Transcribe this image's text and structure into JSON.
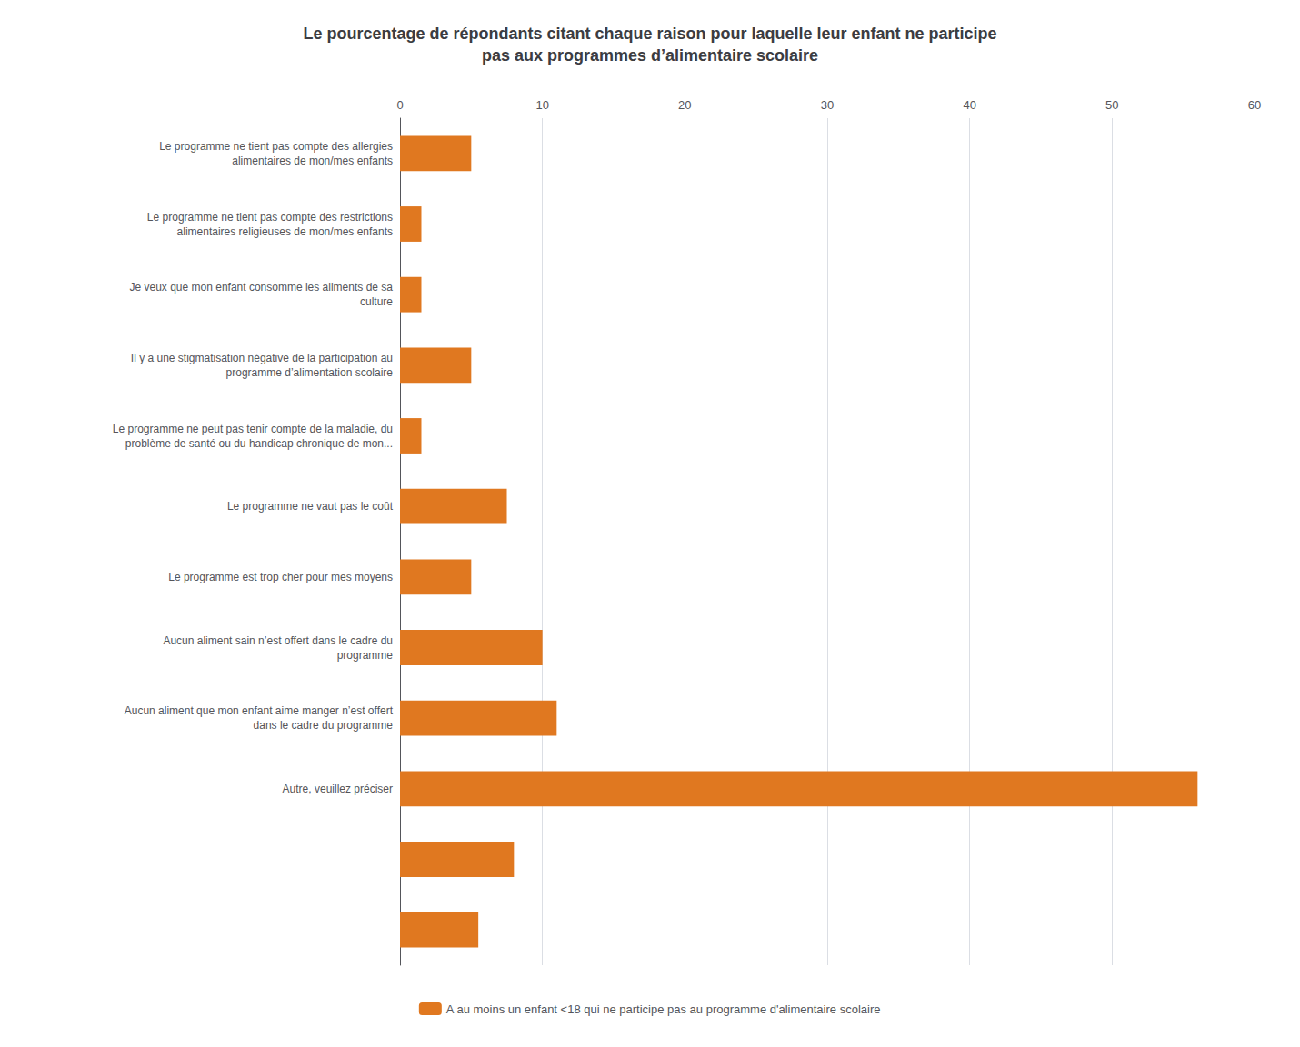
{
  "chart_data": {
    "type": "bar",
    "orientation": "horizontal",
    "title": "Le pourcentage de répondants citant chaque raison pour laquelle leur enfant ne participe\npas aux programmes d’alimentaire scolaire",
    "categories": [
      "Le programme ne tient pas compte des allergies\nalimentaires de mon/mes enfants",
      "Le programme ne tient pas compte des restrictions\nalimentaires religieuses de mon/mes enfants",
      "Je veux que mon enfant consomme les aliments de sa\nculture",
      "Il y a une stigmatisation négative de la participation au\nprogramme d’alimentation scolaire",
      "Le programme ne peut pas tenir compte de la maladie, du\nproblème de santé ou du handicap chronique de mon...",
      "Le programme ne vaut pas le coût",
      "Le programme est trop cher pour mes moyens",
      "Aucun aliment sain n’est offert dans le cadre du\nprogramme",
      "Aucun aliment que mon enfant aime manger n’est offert\ndans le cadre du programme",
      "Autre, veuillez préciser",
      null,
      null
    ],
    "series": [
      {
        "name": "A au moins un enfant <18 qui ne participe pas au programme d'alimentaire scolaire",
        "color": "#E07820",
        "values": [
          5.0,
          1.5,
          1.5,
          5.0,
          1.5,
          7.5,
          5.0,
          10.0,
          11.0,
          56.0,
          8.0,
          5.5
        ]
      }
    ],
    "xlim": [
      0,
      60
    ],
    "xticks": [
      0,
      10,
      20,
      30,
      40,
      50,
      60
    ],
    "grid": true,
    "legend": "bottom"
  }
}
